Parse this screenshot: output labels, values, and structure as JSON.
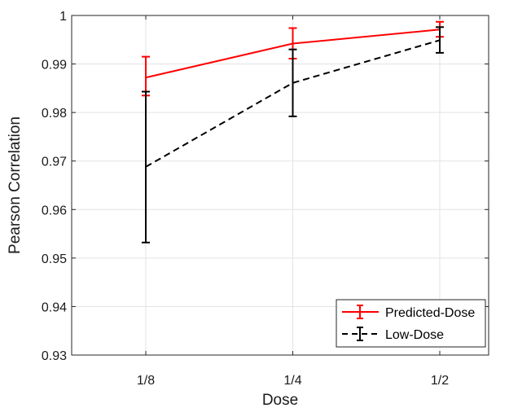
{
  "chart_data": {
    "type": "line",
    "title": "",
    "xlabel": "Dose",
    "ylabel": "Pearson Correlation",
    "categories": [
      "1/8",
      "1/4",
      "1/2"
    ],
    "ylim": [
      0.93,
      1.0
    ],
    "yticks": [
      0.93,
      0.94,
      0.95,
      0.96,
      0.97,
      0.98,
      0.99,
      1.0
    ],
    "ytick_labels": [
      "0.93",
      "0.94",
      "0.95",
      "0.96",
      "0.97",
      "0.98",
      "0.99",
      "1"
    ],
    "grid": true,
    "legend_position": "bottom-right",
    "series": [
      {
        "name": "Predicted-Dose",
        "color": "#ff0000",
        "line_style": "solid",
        "values": [
          0.9872,
          0.9942,
          0.9971
        ],
        "err_low": [
          0.9835,
          0.9911,
          0.9956
        ],
        "err_high": [
          0.9915,
          0.9974,
          0.9987
        ]
      },
      {
        "name": "Low-Dose",
        "color": "#000000",
        "line_style": "dashed",
        "values": [
          0.9688,
          0.9861,
          0.9949
        ],
        "err_low": [
          0.9532,
          0.9792,
          0.9923
        ],
        "err_high": [
          0.9843,
          0.993,
          0.9976
        ]
      }
    ]
  }
}
